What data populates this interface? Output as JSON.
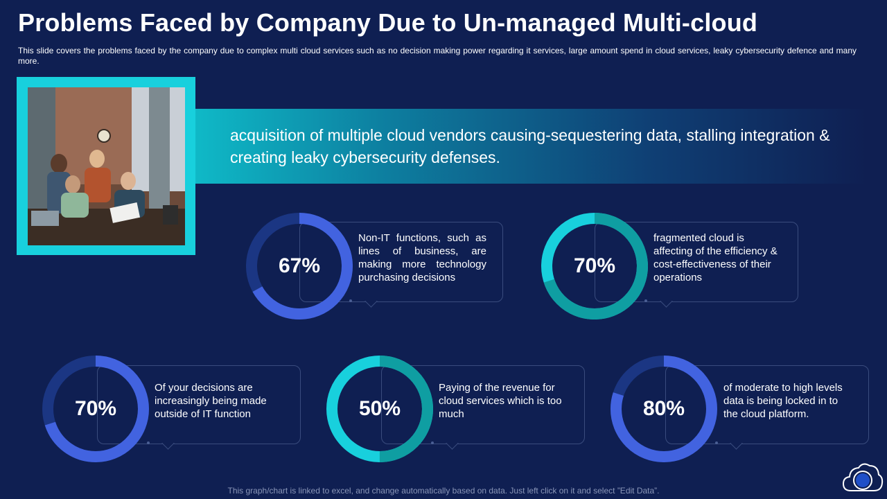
{
  "title": "Problems Faced by Company Due to Un-managed Multi-cloud",
  "subtitle": "This slide covers the problems faced by the company due to complex multi cloud services such as no decision making power regarding it services, large amount spend in cloud services, leaky cybersecurity defence and many more.",
  "banner_text": "acquisition of multiple cloud vendors causing-sequestering data, stalling integration & creating leaky cybersecurity defenses.",
  "footnote": "This graph/chart is linked to excel, and change automatically based on data. Just left click on it and select ”Edit Data”.",
  "colors": {
    "background": "#0f1f52",
    "blue_fill": "#4263e0",
    "blue_track": "#1b3683",
    "teal_fill": "#0f9ea2",
    "teal_accent": "#18d0dd",
    "teal_track": "#0c6f78"
  },
  "icons": [
    "cloud-logo-icon"
  ],
  "chart_data": [
    {
      "type": "pie",
      "variant": "donut",
      "value": 67,
      "label": "67%",
      "color": "blue",
      "description": "Non-IT functions, such as lines of business, are making more technology purchasing decisions"
    },
    {
      "type": "pie",
      "variant": "donut",
      "value": 70,
      "label": "70%",
      "color": "teal",
      "description": "fragmented cloud is affecting of the efficiency & cost-effectiveness of their operations"
    },
    {
      "type": "pie",
      "variant": "donut",
      "value": 70,
      "label": "70%",
      "color": "blue",
      "description": "Of your decisions are increasingly being made outside of IT function"
    },
    {
      "type": "pie",
      "variant": "donut",
      "value": 50,
      "label": "50%",
      "color": "teal",
      "description": "Paying of the revenue for cloud services which is too much"
    },
    {
      "type": "pie",
      "variant": "donut",
      "value": 80,
      "label": "80%",
      "color": "blue",
      "description": "of moderate to high levels data is being locked in to the cloud platform."
    }
  ]
}
